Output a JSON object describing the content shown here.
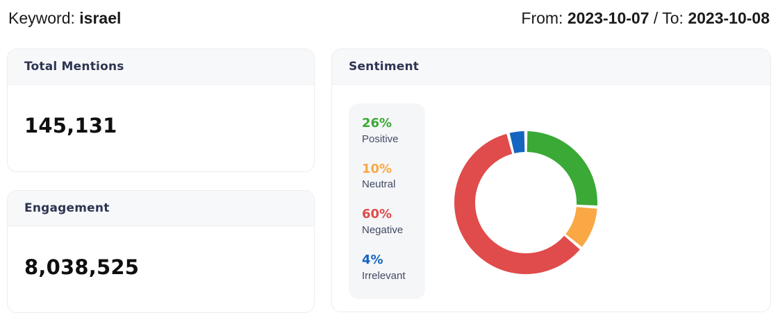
{
  "header": {
    "keyword_label": "Keyword:",
    "keyword_value": "israel",
    "from_label": "From:",
    "from_value": "2023-10-07",
    "separator": "/",
    "to_label": "To:",
    "to_value": "2023-10-08"
  },
  "cards": {
    "total_mentions": {
      "title": "Total Mentions",
      "value": "145,131"
    },
    "engagement": {
      "title": "Engagement",
      "value": "8,038,525"
    },
    "sentiment": {
      "title": "Sentiment"
    }
  },
  "chart_data": {
    "type": "pie",
    "title": "Sentiment",
    "donut": true,
    "categories": [
      "Positive",
      "Neutral",
      "Negative",
      "Irrelevant"
    ],
    "values": [
      26,
      10,
      60,
      4
    ],
    "unit": "%",
    "colors": [
      "#3aa935",
      "#f9a845",
      "#e04b4b",
      "#1565c0"
    ],
    "start_angle_deg": 0,
    "direction": "clockwise",
    "legend_position": "left",
    "label_color": "#424a63"
  }
}
